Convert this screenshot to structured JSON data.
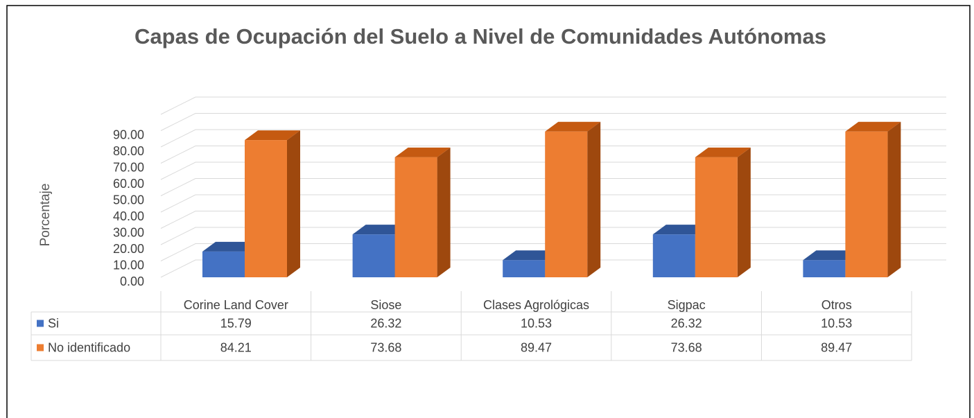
{
  "chart_data": {
    "type": "bar3d",
    "title": "Capas de Ocupación del Suelo a Nivel de Comunidades Autónomas",
    "y_label": "Porcentaje",
    "categories": [
      "Corine Land Cover",
      "Siose",
      "Clases Agrológicas",
      "Sigpac",
      "Otros"
    ],
    "series": [
      {
        "name": "Si",
        "color": "#4472c4",
        "values": [
          15.79,
          26.32,
          10.53,
          26.32,
          10.53
        ]
      },
      {
        "name": "No identificado",
        "color": "#ed7d31",
        "values": [
          84.21,
          73.68,
          89.47,
          73.68,
          89.47
        ]
      }
    ],
    "ylim": [
      0,
      100
    ],
    "yticks": [
      {
        "value": 0,
        "label": "0.00"
      },
      {
        "value": 10,
        "label": "10.00"
      },
      {
        "value": 20,
        "label": "20.00"
      },
      {
        "value": 30,
        "label": "30.00"
      },
      {
        "value": 40,
        "label": "40.00"
      },
      {
        "value": 50,
        "label": "50.00"
      },
      {
        "value": 60,
        "label": "60.00"
      },
      {
        "value": 70,
        "label": "70.00"
      },
      {
        "value": 80,
        "label": "80.00"
      },
      {
        "value": 90,
        "label": "90.00"
      }
    ],
    "grid": true
  }
}
